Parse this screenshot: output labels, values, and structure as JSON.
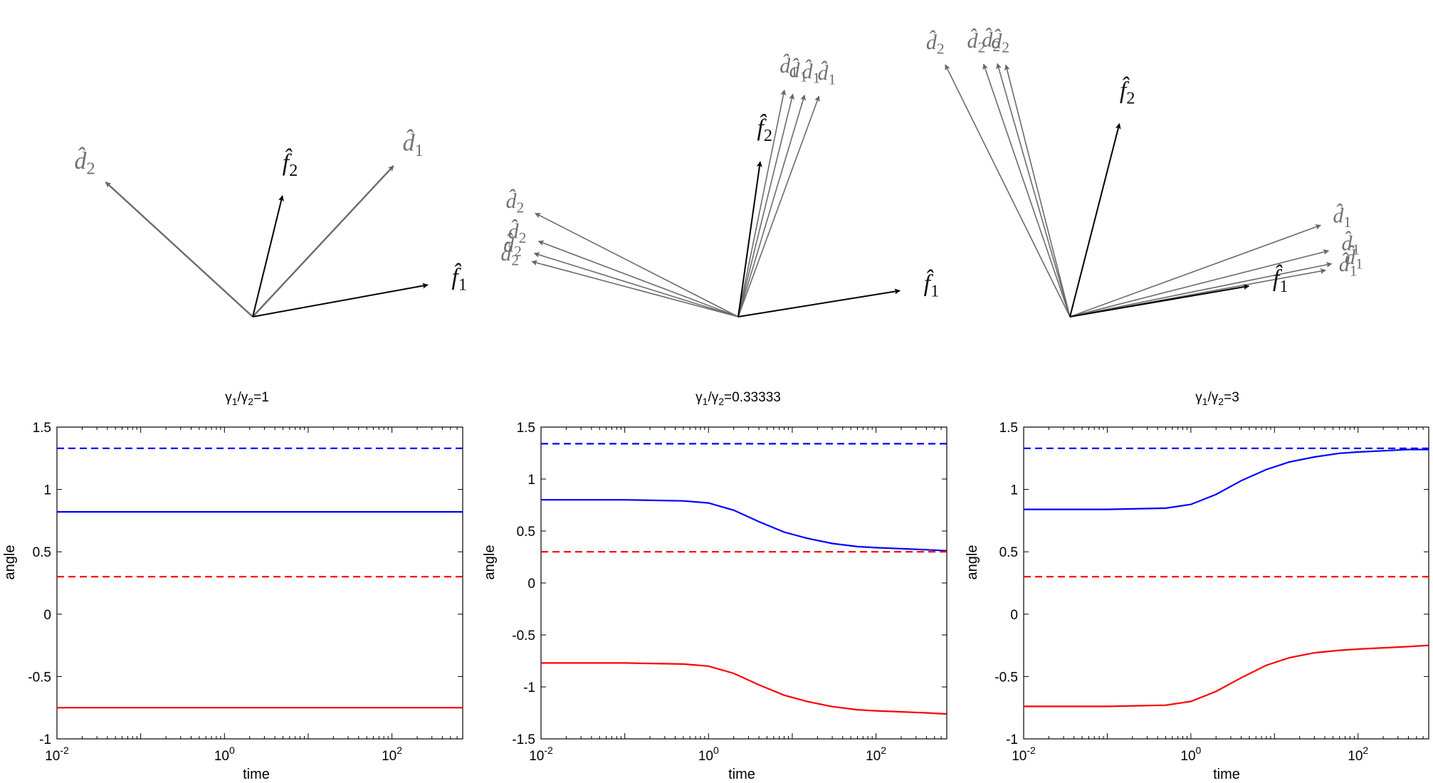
{
  "vector_diagrams": [
    {
      "id": "equal",
      "f_vectors": [
        {
          "label": "f̂1",
          "angle": 0.18
        },
        {
          "label": "f̂2",
          "angle": 1.33
        }
      ],
      "d_vectors": [
        {
          "label": "d̂1",
          "angle": 0.82
        },
        {
          "label": "d̂2",
          "angle": 2.4
        }
      ]
    },
    {
      "id": "gamma_small",
      "f_vectors": [
        {
          "label": "f̂1",
          "angle": 0.16
        },
        {
          "label": "f̂2",
          "angle": 1.43
        }
      ],
      "d_vectors": [
        {
          "label": "d̂1",
          "angle": 1.22
        },
        {
          "label": "d̂1",
          "angle": 1.28
        },
        {
          "label": "d̂1",
          "angle": 1.33
        },
        {
          "label": "d̂1",
          "angle": 1.37
        },
        {
          "label": "d̂2",
          "angle": 2.67
        },
        {
          "label": "d̂2",
          "angle": 2.78
        },
        {
          "label": "d̂2",
          "angle": 2.84
        },
        {
          "label": "d̂2",
          "angle": 2.88
        }
      ]
    },
    {
      "id": "gamma_large",
      "f_vectors": [
        {
          "label": "f̂1",
          "angle": 0.17
        },
        {
          "label": "f̂2",
          "angle": 1.32
        }
      ],
      "d_vectors": [
        {
          "label": "d̂1",
          "angle": 0.35
        },
        {
          "label": "d̂1",
          "angle": 0.25
        },
        {
          "label": "d̂1",
          "angle": 0.2
        },
        {
          "label": "d̂1",
          "angle": 0.18
        },
        {
          "label": "d̂2",
          "angle": 2.03
        },
        {
          "label": "d̂2",
          "angle": 1.9
        },
        {
          "label": "d̂2",
          "angle": 1.85
        },
        {
          "label": "d̂2",
          "angle": 1.82
        }
      ]
    }
  ],
  "chart_data": [
    {
      "type": "line",
      "title": "γ1/γ2=1",
      "title_parts": {
        "a": "γ",
        "s1": "1",
        "b": "/γ",
        "s2": "2",
        "c": "=1"
      },
      "xlabel": "time",
      "ylabel": "angle",
      "xscale": "log",
      "xlim": [
        0.01,
        700
      ],
      "ylim": [
        -1,
        1.5
      ],
      "yticks": [
        "-1",
        "-0.5",
        "0",
        "0.5",
        "1",
        "1.5"
      ],
      "xticks": [
        {
          "base": "10",
          "exp": "-2"
        },
        {
          "base": "10",
          "exp": "0"
        },
        {
          "base": "10",
          "exp": "2"
        }
      ],
      "series": [
        {
          "name": "blue-dashed",
          "color": "#0000ff",
          "dash": true,
          "x": [
            0.01,
            700
          ],
          "y": [
            1.33,
            1.33
          ]
        },
        {
          "name": "blue-solid",
          "color": "#0000ff",
          "dash": false,
          "x": [
            0.01,
            700
          ],
          "y": [
            0.82,
            0.82
          ]
        },
        {
          "name": "red-dashed",
          "color": "#ff0000",
          "dash": true,
          "x": [
            0.01,
            700
          ],
          "y": [
            0.3,
            0.3
          ]
        },
        {
          "name": "red-solid",
          "color": "#ff0000",
          "dash": false,
          "x": [
            0.01,
            700
          ],
          "y": [
            -0.75,
            -0.75
          ]
        }
      ]
    },
    {
      "type": "line",
      "title": "γ1/γ2=0.33333",
      "title_parts": {
        "a": "γ",
        "s1": "1",
        "b": "/γ",
        "s2": "2",
        "c": "=0.33333"
      },
      "xlabel": "time",
      "ylabel": "angle",
      "xscale": "log",
      "xlim": [
        0.01,
        700
      ],
      "ylim": [
        -1.5,
        1.5
      ],
      "yticks": [
        "-1.5",
        "-1",
        "-0.5",
        "0",
        "0.5",
        "1",
        "1.5"
      ],
      "xticks": [
        {
          "base": "10",
          "exp": "-2"
        },
        {
          "base": "10",
          "exp": "0"
        },
        {
          "base": "10",
          "exp": "2"
        }
      ],
      "series": [
        {
          "name": "blue-dashed",
          "color": "#0000ff",
          "dash": true,
          "x": [
            0.01,
            700
          ],
          "y": [
            1.34,
            1.34
          ]
        },
        {
          "name": "blue-solid",
          "color": "#0000ff",
          "dash": false,
          "x": [
            0.01,
            0.1,
            0.5,
            1,
            2,
            4,
            8,
            15,
            30,
            60,
            100,
            200,
            400,
            700
          ],
          "y": [
            0.8,
            0.8,
            0.79,
            0.77,
            0.7,
            0.59,
            0.49,
            0.43,
            0.38,
            0.35,
            0.34,
            0.33,
            0.32,
            0.31
          ]
        },
        {
          "name": "red-dashed",
          "color": "#ff0000",
          "dash": true,
          "x": [
            0.01,
            700
          ],
          "y": [
            0.3,
            0.3
          ]
        },
        {
          "name": "red-solid",
          "color": "#ff0000",
          "dash": false,
          "x": [
            0.01,
            0.1,
            0.5,
            1,
            2,
            4,
            8,
            15,
            30,
            60,
            100,
            200,
            400,
            700
          ],
          "y": [
            -0.77,
            -0.77,
            -0.78,
            -0.8,
            -0.87,
            -0.98,
            -1.08,
            -1.14,
            -1.19,
            -1.22,
            -1.23,
            -1.24,
            -1.25,
            -1.26
          ]
        }
      ]
    },
    {
      "type": "line",
      "title": "γ1/γ2=3",
      "title_parts": {
        "a": "γ",
        "s1": "1",
        "b": "/γ",
        "s2": "2",
        "c": "=3"
      },
      "xlabel": "time",
      "ylabel": "angle",
      "xscale": "log",
      "xlim": [
        0.01,
        700
      ],
      "ylim": [
        -1,
        1.5
      ],
      "yticks": [
        "-1",
        "-0.5",
        "0",
        "0.5",
        "1",
        "1.5"
      ],
      "xticks": [
        {
          "base": "10",
          "exp": "-2"
        },
        {
          "base": "10",
          "exp": "0"
        },
        {
          "base": "10",
          "exp": "2"
        }
      ],
      "series": [
        {
          "name": "blue-dashed",
          "color": "#0000ff",
          "dash": true,
          "x": [
            0.01,
            700
          ],
          "y": [
            1.33,
            1.33
          ]
        },
        {
          "name": "blue-solid",
          "color": "#0000ff",
          "dash": false,
          "x": [
            0.01,
            0.1,
            0.5,
            1,
            2,
            4,
            8,
            15,
            30,
            60,
            100,
            200,
            400,
            700
          ],
          "y": [
            0.84,
            0.84,
            0.85,
            0.88,
            0.96,
            1.07,
            1.16,
            1.22,
            1.26,
            1.29,
            1.3,
            1.31,
            1.32,
            1.32
          ]
        },
        {
          "name": "red-dashed",
          "color": "#ff0000",
          "dash": true,
          "x": [
            0.01,
            700
          ],
          "y": [
            0.3,
            0.3
          ]
        },
        {
          "name": "red-solid",
          "color": "#ff0000",
          "dash": false,
          "x": [
            0.01,
            0.1,
            0.5,
            1,
            2,
            4,
            8,
            15,
            30,
            60,
            100,
            200,
            400,
            700
          ],
          "y": [
            -0.74,
            -0.74,
            -0.73,
            -0.7,
            -0.62,
            -0.51,
            -0.41,
            -0.35,
            -0.31,
            -0.29,
            -0.28,
            -0.27,
            -0.26,
            -0.25
          ]
        }
      ]
    }
  ]
}
